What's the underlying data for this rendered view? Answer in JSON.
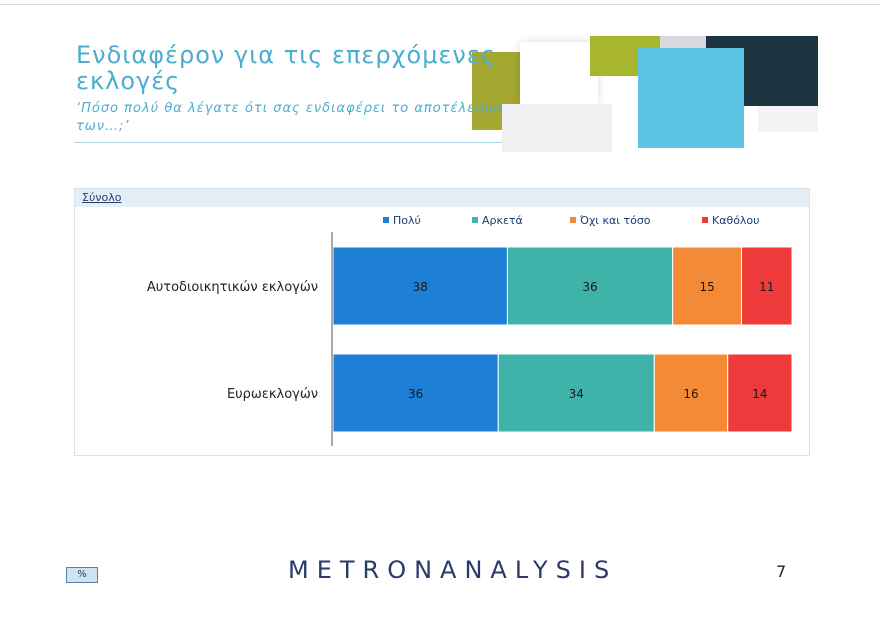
{
  "title": "Ενδιαφέρον για τις επερχόμενες εκλογές",
  "subtitle": "‘Πόσο πολύ θα λέγατε ότι σας ενδιαφέρει το αποτέλεσμα των…;’",
  "panel_label": "Σύνολο",
  "footer": {
    "logo_text": "METRONANALYSIS",
    "percent_badge": "%",
    "page_number": "7"
  },
  "colors": {
    "Πολύ": "#1d7fd5",
    "Αρκετά": "#3fb3aa",
    "Όχι και τόσο": "#f58a36",
    "Καθόλου": "#ee3a3a"
  },
  "chart_data": {
    "type": "bar",
    "orientation": "horizontal",
    "stacked": true,
    "categories": [
      "Αυτοδιοικητικών εκλογών",
      "Ευρωεκλογών"
    ],
    "series": [
      {
        "name": "Πολύ",
        "values": [
          38,
          36
        ]
      },
      {
        "name": "Αρκετά",
        "values": [
          36,
          34
        ]
      },
      {
        "name": "Όχι και τόσο",
        "values": [
          15,
          16
        ]
      },
      {
        "name": "Καθόλου",
        "values": [
          11,
          14
        ]
      }
    ],
    "xlim": [
      0,
      100
    ],
    "legend": "top",
    "grid": false
  }
}
